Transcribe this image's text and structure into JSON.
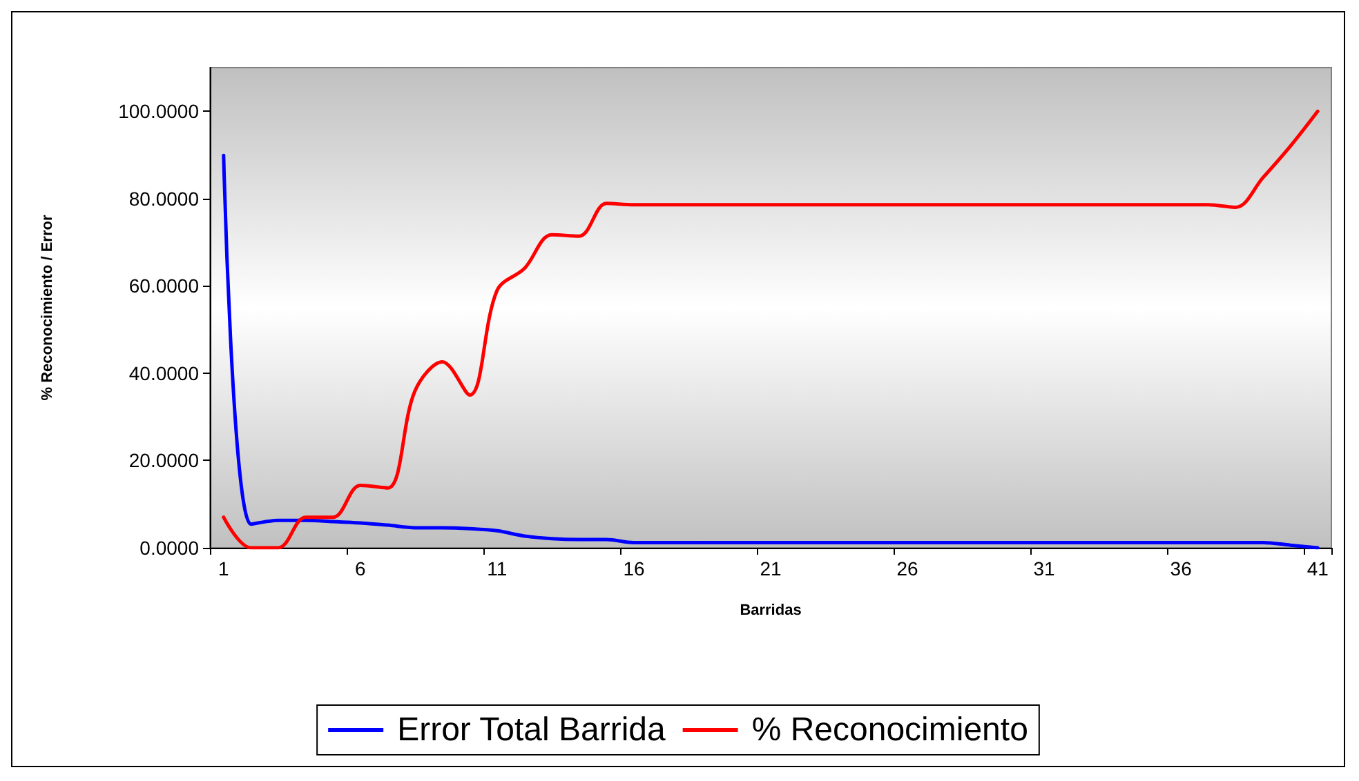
{
  "chart_data": {
    "type": "line",
    "xlabel": "Barridas",
    "ylabel": "% Reconocimiento / Error",
    "categories": [
      "1",
      null,
      null,
      null,
      null,
      "6",
      null,
      null,
      null,
      null,
      "11",
      null,
      null,
      null,
      null,
      "16",
      null,
      null,
      null,
      null,
      "21",
      null,
      null,
      null,
      null,
      "26",
      null,
      null,
      null,
      null,
      "31",
      null,
      null,
      null,
      null,
      "36",
      null,
      null,
      null,
      null,
      "41"
    ],
    "series": [
      {
        "name": "Error Total Barrida",
        "color": "#0000ff",
        "values": [
          89.9,
          5.4,
          6.3,
          6.3,
          6.0,
          5.7,
          5.2,
          4.6,
          4.6,
          4.4,
          3.9,
          2.7,
          2.1,
          1.9,
          1.9,
          1.2,
          1.2,
          1.2,
          1.2,
          1.2,
          1.2,
          1.2,
          1.2,
          1.2,
          1.2,
          1.2,
          1.2,
          1.2,
          1.2,
          1.2,
          1.2,
          1.2,
          1.2,
          1.2,
          1.2,
          1.2,
          1.2,
          1.2,
          1.2,
          0.6,
          0
        ]
      },
      {
        "name": "% Reconocimiento",
        "color": "#ff0000",
        "values": [
          7,
          0,
          0,
          7,
          7,
          14.3,
          13.7,
          36,
          42.6,
          35,
          59,
          64,
          71.7,
          71.4,
          78.9,
          78.6,
          78.6,
          78.6,
          78.6,
          78.6,
          78.6,
          78.6,
          78.6,
          78.6,
          78.6,
          78.6,
          78.6,
          78.6,
          78.6,
          78.6,
          78.6,
          78.6,
          78.6,
          78.6,
          78.6,
          78.6,
          78.6,
          78,
          84.8,
          92,
          100
        ]
      }
    ],
    "ylim": [
      0,
      110
    ],
    "yticks": [
      {
        "value": 0,
        "label": "0.0000"
      },
      {
        "value": 20,
        "label": "20.0000"
      },
      {
        "value": 40,
        "label": "40.0000"
      },
      {
        "value": 60,
        "label": "60.0000"
      },
      {
        "value": 80,
        "label": "80.0000"
      },
      {
        "value": 100,
        "label": "100.0000"
      }
    ],
    "grid": false,
    "legend": "bottom",
    "marker": "none",
    "line_style": "solid"
  }
}
